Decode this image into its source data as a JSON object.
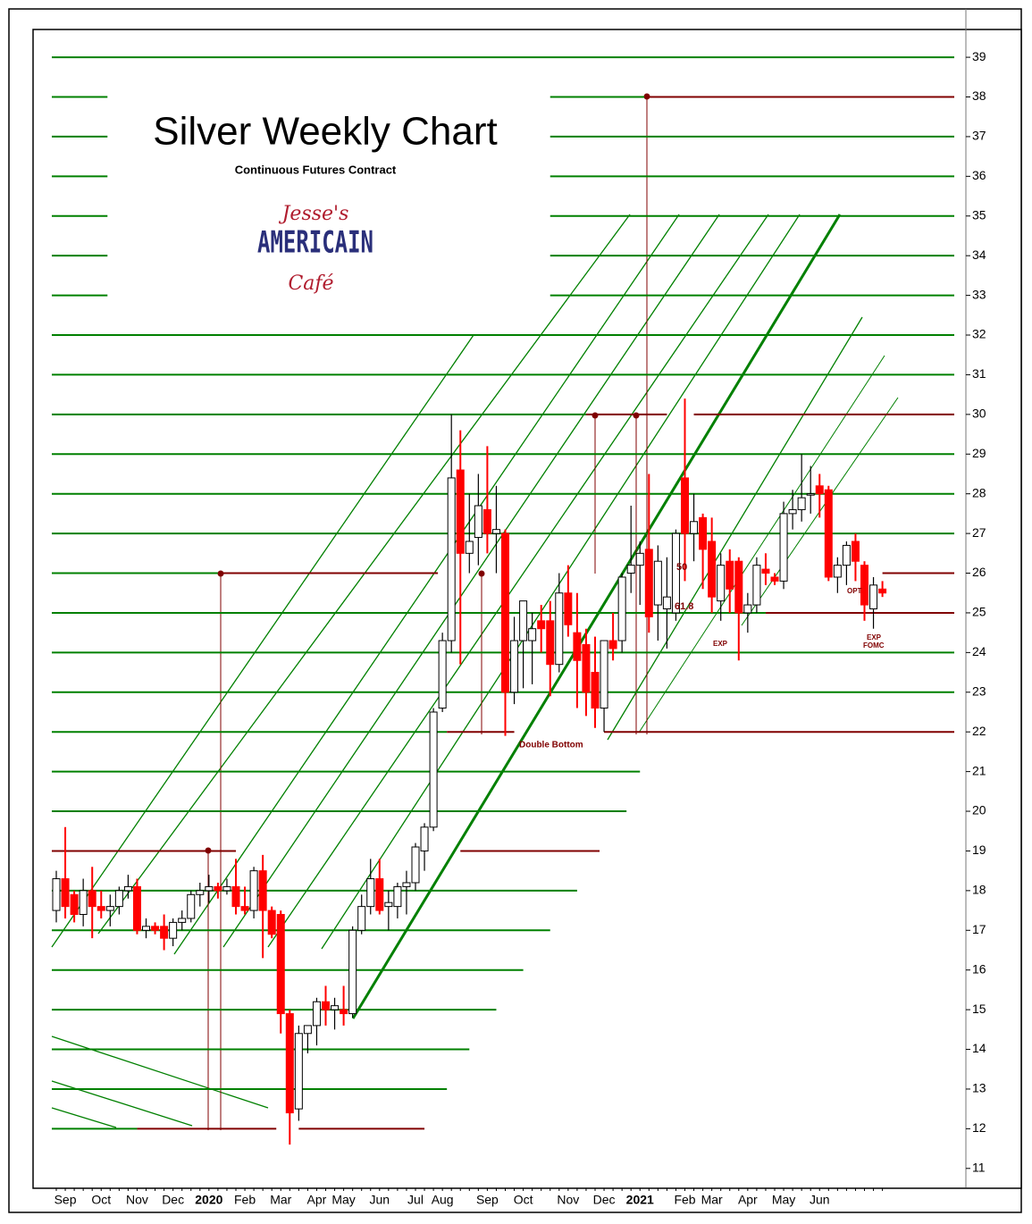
{
  "chart_data": {
    "type": "candlestick",
    "title": "Silver Weekly Chart",
    "subtitle": "Continuous Futures Contract",
    "logo": {
      "top": "Jesse's",
      "middle": "AMERICAIN",
      "bottom": "Café"
    },
    "annotations": [
      "Double Bottom",
      "50",
      "61.8",
      "EXP",
      "OPT",
      "EXP",
      "FOMC"
    ],
    "categories": [
      null,
      "Sep",
      null,
      null,
      null,
      "Oct",
      null,
      null,
      null,
      "Nov",
      null,
      null,
      null,
      "Dec",
      null,
      null,
      null,
      "2020",
      null,
      null,
      null,
      "Feb",
      null,
      null,
      null,
      "Mar",
      null,
      null,
      null,
      "Apr",
      null,
      null,
      "May",
      null,
      null,
      null,
      "Jun",
      null,
      null,
      null,
      "Jul",
      null,
      null,
      "Aug",
      null,
      null,
      null,
      null,
      "Sep",
      null,
      null,
      null,
      "Oct",
      null,
      null,
      null,
      null,
      "Nov",
      null,
      null,
      null,
      "Dec",
      null,
      null,
      null,
      "2021",
      null,
      null,
      null,
      null,
      "Feb",
      null,
      null,
      "Mar",
      null,
      null,
      null,
      "Apr",
      null,
      null,
      null,
      "May",
      null,
      null,
      null,
      "Jun",
      null,
      null,
      null,
      null,
      null,
      null,
      null
    ],
    "open": [
      17.5,
      18.3,
      17.9,
      17.4,
      18.0,
      17.6,
      17.5,
      17.6,
      18.0,
      18.1,
      17.0,
      17.1,
      17.1,
      16.8,
      17.2,
      17.3,
      17.9,
      18.0,
      18.1,
      18.0,
      18.1,
      17.6,
      17.5,
      18.5,
      17.5,
      17.4,
      14.9,
      12.5,
      14.4,
      14.6,
      15.2,
      15.0,
      15.0,
      14.9,
      17.0,
      17.6,
      18.3,
      17.6,
      17.6,
      18.1,
      18.2,
      19.0,
      19.6,
      22.6,
      24.3,
      28.6,
      26.5,
      26.9,
      27.6,
      27.0,
      27.0,
      23.0,
      24.3,
      24.3,
      24.8,
      24.8,
      23.7,
      25.5,
      24.5,
      24.2,
      23.5,
      22.6,
      24.3,
      24.3,
      26.0,
      26.2,
      26.6,
      25.2,
      25.1,
      25.0,
      28.4,
      27.0,
      27.4,
      26.8,
      25.3,
      26.3,
      26.3,
      25.0,
      25.2,
      26.1,
      25.9,
      25.8,
      27.5,
      27.6,
      28.0,
      28.2,
      28.1,
      25.9,
      26.2,
      26.8,
      26.2,
      25.1,
      25.6
    ],
    "high": [
      18.5,
      19.6,
      18.0,
      18.3,
      18.6,
      18.0,
      17.9,
      18.1,
      18.4,
      18.3,
      17.3,
      17.2,
      17.4,
      17.3,
      17.5,
      18.0,
      18.2,
      18.4,
      18.2,
      18.3,
      18.8,
      18.1,
      18.6,
      18.9,
      17.6,
      17.5,
      15.0,
      14.6,
      14.6,
      15.3,
      15.6,
      15.3,
      15.6,
      17.1,
      17.9,
      18.8,
      18.8,
      18.0,
      18.2,
      18.5,
      19.2,
      19.7,
      22.6,
      24.5,
      30.0,
      29.6,
      28.0,
      28.5,
      29.2,
      28.2,
      27.1,
      24.9,
      25.3,
      25.0,
      25.2,
      25.3,
      26.0,
      26.2,
      25.5,
      24.6,
      24.4,
      24.3,
      25.0,
      26.0,
      27.7,
      26.8,
      28.5,
      26.7,
      26.4,
      27.1,
      30.4,
      28.0,
      27.5,
      27.4,
      26.5,
      26.6,
      26.4,
      25.5,
      26.4,
      26.5,
      26.0,
      27.8,
      28.1,
      29.0,
      28.7,
      28.5,
      28.2,
      26.4,
      26.8,
      27.0,
      26.3,
      25.9,
      25.8
    ],
    "low": [
      17.2,
      17.3,
      17.2,
      17.1,
      16.8,
      17.3,
      17.1,
      17.4,
      17.8,
      16.9,
      16.8,
      16.9,
      16.5,
      16.6,
      17.0,
      17.2,
      17.6,
      17.7,
      17.8,
      17.9,
      17.4,
      17.4,
      17.3,
      16.3,
      16.8,
      14.4,
      11.6,
      12.2,
      13.9,
      14.1,
      14.6,
      14.5,
      14.6,
      14.8,
      16.9,
      17.4,
      17.4,
      17.0,
      17.3,
      17.4,
      18.0,
      18.5,
      19.5,
      22.5,
      24.0,
      23.7,
      26.0,
      26.2,
      26.5,
      26.0,
      21.9,
      22.7,
      23.1,
      23.2,
      24.0,
      22.9,
      23.5,
      24.4,
      22.6,
      22.4,
      22.1,
      22.0,
      23.8,
      24.0,
      25.5,
      25.2,
      24.5,
      24.3,
      24.1,
      24.8,
      25.8,
      26.3,
      25.6,
      25.0,
      24.8,
      25.0,
      23.8,
      24.5,
      25.0,
      25.7,
      25.7,
      25.6,
      27.1,
      27.3,
      27.5,
      27.4,
      25.8,
      25.5,
      25.7,
      25.8,
      24.8,
      24.6,
      25.4
    ],
    "close": [
      18.3,
      17.6,
      17.4,
      18.0,
      17.6,
      17.5,
      17.6,
      18.0,
      18.1,
      17.0,
      17.1,
      17.0,
      16.8,
      17.2,
      17.3,
      17.9,
      18.0,
      18.1,
      18.0,
      18.1,
      17.6,
      17.5,
      18.5,
      17.5,
      16.9,
      14.9,
      12.4,
      14.4,
      14.6,
      15.2,
      15.0,
      15.1,
      14.9,
      17.0,
      17.6,
      18.3,
      17.5,
      17.7,
      18.1,
      18.2,
      19.1,
      19.6,
      22.5,
      24.3,
      28.4,
      26.5,
      26.8,
      27.7,
      27.0,
      27.1,
      23.0,
      24.3,
      25.3,
      24.6,
      24.6,
      23.7,
      25.5,
      24.7,
      23.8,
      23.0,
      22.6,
      24.3,
      24.1,
      25.9,
      26.2,
      26.5,
      24.9,
      26.3,
      25.4,
      27.0,
      27.0,
      27.3,
      26.6,
      25.4,
      26.2,
      25.6,
      25.0,
      25.2,
      26.2,
      26.0,
      25.8,
      27.5,
      27.6,
      27.9,
      28.0,
      28.0,
      25.9,
      26.2,
      26.7,
      26.3,
      25.2,
      25.7,
      25.5
    ],
    "up_color": "#ffffff",
    "down_color": "#ff0000",
    "levels": [
      {
        "value": 39,
        "color": "#008000",
        "from": -0.5,
        "to": 100
      },
      {
        "value": 38,
        "color": "#008000",
        "from": -0.5,
        "to": 5.7
      },
      {
        "value": 38,
        "color": "#008000",
        "from": 55,
        "to": 65.5
      },
      {
        "value": 38,
        "color": "#800000",
        "from": 65.5,
        "to": 100
      },
      {
        "value": 37,
        "color": "#008000",
        "from": -0.5,
        "to": 5.7
      },
      {
        "value": 37,
        "color": "#008000",
        "from": 55,
        "to": 100
      },
      {
        "value": 36,
        "color": "#008000",
        "from": -0.5,
        "to": 5.7
      },
      {
        "value": 36,
        "color": "#008000",
        "from": 55,
        "to": 100
      },
      {
        "value": 35,
        "color": "#008000",
        "from": -0.5,
        "to": 5.7
      },
      {
        "value": 35,
        "color": "#008000",
        "from": 55,
        "to": 100
      },
      {
        "value": 34,
        "color": "#008000",
        "from": -0.5,
        "to": 5.7
      },
      {
        "value": 34,
        "color": "#008000",
        "from": 55,
        "to": 100
      },
      {
        "value": 33,
        "color": "#008000",
        "from": -0.5,
        "to": 5.7
      },
      {
        "value": 33,
        "color": "#008000",
        "from": 55,
        "to": 100
      },
      {
        "value": 32,
        "color": "#008000",
        "from": -0.5,
        "to": 100
      },
      {
        "value": 31,
        "color": "#008000",
        "from": -0.5,
        "to": 100
      },
      {
        "value": 30,
        "color": "#008000",
        "from": -0.5,
        "to": 59
      },
      {
        "value": 30,
        "color": "#800000",
        "from": 59,
        "to": 68
      },
      {
        "value": 30,
        "color": "#800000",
        "from": 71,
        "to": 100
      },
      {
        "value": 29,
        "color": "#008000",
        "from": -0.5,
        "to": 100
      },
      {
        "value": 28,
        "color": "#008000",
        "from": -0.5,
        "to": 100
      },
      {
        "value": 27,
        "color": "#008000",
        "from": -0.5,
        "to": 100
      },
      {
        "value": 26,
        "color": "#008000",
        "from": -0.5,
        "to": 18
      },
      {
        "value": 26,
        "color": "#800000",
        "from": 18,
        "to": 42.5
      },
      {
        "value": 26,
        "color": "#800000",
        "from": 92,
        "to": 100
      },
      {
        "value": 25,
        "color": "#008000",
        "from": -0.5,
        "to": 79
      },
      {
        "value": 25,
        "color": "#800000",
        "from": 79,
        "to": 100
      },
      {
        "value": 24,
        "color": "#008000",
        "from": -0.5,
        "to": 100
      },
      {
        "value": 23,
        "color": "#008000",
        "from": -0.5,
        "to": 100
      },
      {
        "value": 22,
        "color": "#008000",
        "from": -0.5,
        "to": 43.5
      },
      {
        "value": 22,
        "color": "#800000",
        "from": 43.5,
        "to": 51
      },
      {
        "value": 22,
        "color": "#800000",
        "from": 61,
        "to": 100
      },
      {
        "value": 21,
        "color": "#008000",
        "from": -0.5,
        "to": 65
      },
      {
        "value": 20,
        "color": "#008000",
        "from": -0.5,
        "to": 63.5
      },
      {
        "value": 19,
        "color": "#800000",
        "from": -0.5,
        "to": 20
      },
      {
        "value": 19,
        "color": "#800000",
        "from": 45,
        "to": 60.5
      },
      {
        "value": 18,
        "color": "#008000",
        "from": -0.5,
        "to": 58
      },
      {
        "value": 17,
        "color": "#008000",
        "from": -0.5,
        "to": 55
      },
      {
        "value": 16,
        "color": "#008000",
        "from": -0.5,
        "to": 52
      },
      {
        "value": 15,
        "color": "#008000",
        "from": -0.5,
        "to": 49
      },
      {
        "value": 14,
        "color": "#008000",
        "from": -0.5,
        "to": 46
      },
      {
        "value": 13,
        "color": "#008000",
        "from": -0.5,
        "to": 43.5
      },
      {
        "value": 12,
        "color": "#008000",
        "from": -0.5,
        "to": 9
      },
      {
        "value": 12,
        "color": "#800000",
        "from": 9,
        "to": 24.5
      },
      {
        "value": 12,
        "color": "#800000",
        "from": 27,
        "to": 41
      }
    ],
    "ylim": [
      10.5,
      39.7
    ],
    "yticks": [
      11,
      12,
      13,
      14,
      15,
      16,
      17,
      18,
      19,
      20,
      21,
      22,
      23,
      24,
      25,
      26,
      27,
      28,
      29,
      30,
      31,
      32,
      33,
      34,
      35,
      36,
      37,
      38,
      39
    ]
  }
}
